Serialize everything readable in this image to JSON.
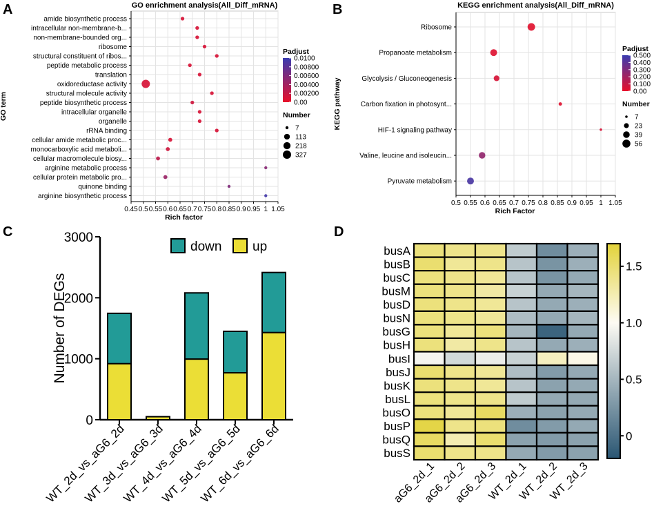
{
  "panels": {
    "A": "A",
    "B": "B",
    "C": "C",
    "D": "D"
  },
  "colors": {
    "low": "#e8102a",
    "high": "#3a3cb0",
    "bar_down": "#229b97",
    "bar_up": "#ebde36",
    "heat_high": "#e2d23a",
    "heat_mid": "#fdfbf4",
    "heat_low": "#2a5673"
  },
  "chart_data": [
    {
      "id": "A",
      "type": "scatter",
      "title": "GO enrichment analysis(All_Diff_mRNA)",
      "xlabel": "Rich factor",
      "ylabel": "GO term",
      "xlim": [
        0.45,
        1.05
      ],
      "x_ticks": [
        "0.45",
        "0.5",
        "0.55",
        "0.6",
        "0.65",
        "0.7",
        "0.75",
        "0.8",
        "0.85",
        "0.9",
        "0.95",
        "1",
        "1.05"
      ],
      "x_tick_values": [
        0.45,
        0.5,
        0.55,
        0.6,
        0.65,
        0.7,
        0.75,
        0.8,
        0.85,
        0.9,
        0.95,
        1.0,
        1.05
      ],
      "categories": [
        "amide biosynthetic process",
        "intracellular non-membrane-b...",
        "non-membrane-bounded org...",
        "ribosome",
        "structural constituent of ribos...",
        "peptide metabolic process",
        "translation",
        "oxidoreductase activity",
        "structural molecule activity",
        "peptide biosynthetic process",
        "intracellular organelle",
        "organelle",
        "rRNA binding",
        "cellular amide metabolic proc...",
        "monocarboxylic acid metaboli...",
        "cellular macromolecule biosy...",
        "arginine metabolic process",
        "cellular protein metabolic pro...",
        "quinone binding",
        "arginine biosynthetic process"
      ],
      "x": [
        0.66,
        0.72,
        0.72,
        0.75,
        0.8,
        0.69,
        0.73,
        0.51,
        0.78,
        0.7,
        0.73,
        0.73,
        0.8,
        0.61,
        0.6,
        0.56,
        1.0,
        0.59,
        0.85,
        1.0
      ],
      "padj": [
        0.001,
        0.001,
        0.001,
        0.001,
        0.001,
        0.001,
        0.001,
        0.001,
        0.001,
        0.0015,
        0.001,
        0.001,
        0.001,
        0.001,
        0.0015,
        0.0025,
        0.0055,
        0.0045,
        0.006,
        0.0095
      ],
      "number": [
        20,
        20,
        20,
        20,
        20,
        20,
        20,
        327,
        20,
        20,
        20,
        20,
        20,
        30,
        30,
        30,
        7,
        30,
        7,
        7
      ],
      "legend": {
        "color_title": "Padjust",
        "color_ticks": [
          "0.0100",
          "0.00800",
          "0.00600",
          "0.00400",
          "0.00200",
          "0.00"
        ],
        "color_range": [
          0.0,
          0.01
        ],
        "size_title": "Number",
        "size_values": [
          7,
          113,
          218,
          327
        ],
        "size_labels": [
          "7",
          "113",
          "218",
          "327"
        ]
      }
    },
    {
      "id": "B",
      "type": "scatter",
      "title": "KEGG enrichment analysis(All_Diff_mRNA)",
      "xlabel": "Rich Factor",
      "ylabel": "KEGG pathway",
      "xlim": [
        0.5,
        1.05
      ],
      "x_ticks": [
        "0.5",
        "0.55",
        "0.6",
        "0.65",
        "0.7",
        "0.75",
        "0.8",
        "0.85",
        "0.9",
        "0.95",
        "1",
        "1.05"
      ],
      "x_tick_values": [
        0.5,
        0.55,
        0.6,
        0.65,
        0.7,
        0.75,
        0.8,
        0.85,
        0.9,
        0.95,
        1.0,
        1.05
      ],
      "categories": [
        "Ribosome",
        "Propanoate metabolism",
        "Glycolysis / Gluconeogenesis",
        "Carbon fixation in photosynt...",
        "HIF-1 signaling pathway",
        "Valine, leucine and isoleucin...",
        "Pyruvate metabolism"
      ],
      "x": [
        0.76,
        0.63,
        0.64,
        0.86,
        1.0,
        0.59,
        0.55
      ],
      "padj": [
        0.02,
        0.03,
        0.05,
        0.03,
        0.05,
        0.25,
        0.45
      ],
      "number": [
        50,
        42,
        30,
        12,
        7,
        38,
        42
      ],
      "legend": {
        "color_title": "Padjust",
        "color_ticks": [
          "0.500",
          "0.400",
          "0.300",
          "0.200",
          "0.100",
          "0.00"
        ],
        "color_range": [
          0.0,
          0.5
        ],
        "size_title": "Number",
        "size_values": [
          7,
          23,
          39,
          56
        ],
        "size_labels": [
          "7",
          "23",
          "39",
          "56"
        ]
      }
    },
    {
      "id": "C",
      "type": "bar",
      "stacked": true,
      "ylabel": "Number of DEGs",
      "ylim": [
        0,
        3000
      ],
      "y_ticks": [
        "0",
        "1000",
        "2000",
        "3000"
      ],
      "y_tick_values": [
        0,
        1000,
        2000,
        3000
      ],
      "categories": [
        "WT_2d_vs_aG6_2d",
        "WT_3d_vs_aG6_3d",
        "WT_4d_vs_aG6_4d",
        "WT_5d_vs_aG6_5d",
        "WT_6d_vs_aG6_6d"
      ],
      "series": [
        {
          "name": "up",
          "values": [
            920,
            50,
            995,
            770,
            1430
          ]
        },
        {
          "name": "down",
          "values": [
            825,
            0,
            1085,
            680,
            985
          ]
        }
      ],
      "legend_labels": [
        "down",
        "up"
      ]
    },
    {
      "id": "D",
      "type": "heatmap",
      "rows": [
        "busA",
        "busB",
        "busC",
        "busM",
        "busD",
        "busN",
        "busG",
        "busH",
        "busI",
        "busJ",
        "busK",
        "busL",
        "busO",
        "busP",
        "busQ",
        "busS"
      ],
      "columns": [
        "aG6_2d_1",
        "aG6_2d_2",
        "aG6_2d_3",
        "WT_2d_1",
        "WT_2d_2",
        "WT_2d_3"
      ],
      "values": [
        [
          1.45,
          1.4,
          1.4,
          0.65,
          0.2,
          0.45
        ],
        [
          1.5,
          1.35,
          1.4,
          0.6,
          0.25,
          0.45
        ],
        [
          1.45,
          1.4,
          1.35,
          0.6,
          0.25,
          0.4
        ],
        [
          1.45,
          1.4,
          1.3,
          0.7,
          0.4,
          0.5
        ],
        [
          1.45,
          1.4,
          1.35,
          0.6,
          0.4,
          0.45
        ],
        [
          1.45,
          1.4,
          1.35,
          0.55,
          0.4,
          0.5
        ],
        [
          1.45,
          1.35,
          1.45,
          0.5,
          -0.1,
          0.4
        ],
        [
          1.45,
          1.3,
          1.4,
          0.6,
          0.4,
          0.45
        ],
        [
          0.95,
          0.75,
          0.9,
          0.7,
          1.2,
          1.05
        ],
        [
          1.5,
          1.4,
          1.35,
          0.55,
          0.3,
          0.4
        ],
        [
          1.45,
          1.4,
          1.35,
          0.6,
          0.35,
          0.4
        ],
        [
          1.45,
          1.4,
          1.4,
          0.65,
          0.4,
          0.4
        ],
        [
          1.45,
          1.35,
          1.55,
          0.45,
          0.35,
          0.4
        ],
        [
          1.65,
          1.4,
          1.45,
          0.2,
          0.3,
          0.4
        ],
        [
          1.55,
          1.25,
          1.5,
          0.35,
          0.3,
          0.35
        ],
        [
          1.5,
          1.4,
          1.4,
          0.4,
          0.3,
          0.35
        ]
      ],
      "range": [
        -0.2,
        1.7
      ],
      "colorbar_ticks": [
        "1.5",
        "1.0",
        "0.5",
        "0"
      ],
      "colorbar_tick_values": [
        1.5,
        1.0,
        0.5,
        0.0
      ]
    }
  ]
}
